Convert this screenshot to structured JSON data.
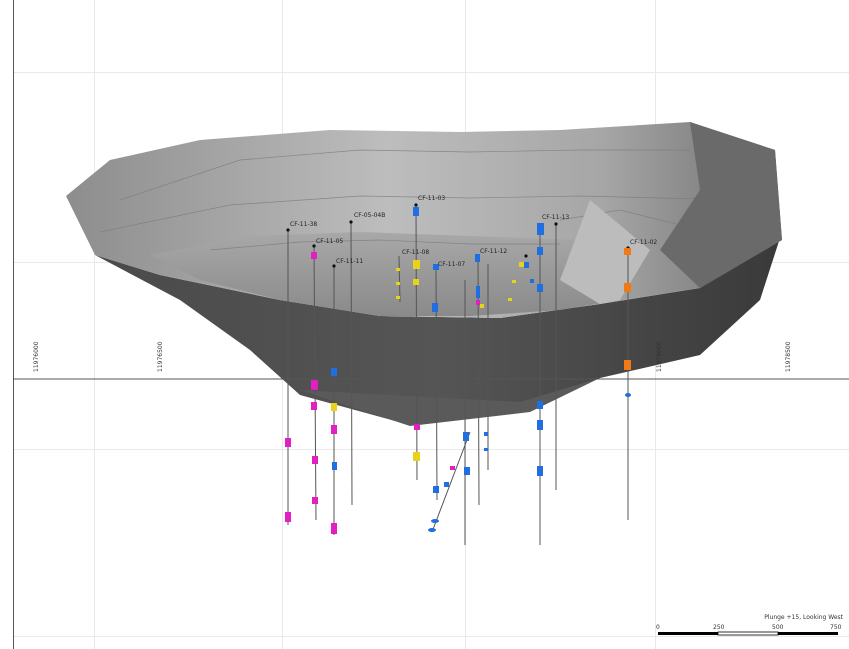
{
  "view": {
    "caption": "Plunge +15, Looking West",
    "northings": [
      "11976000",
      "11976500",
      "11978000",
      "11978500"
    ],
    "scale_ticks": [
      "0",
      "250",
      "500",
      "750"
    ]
  },
  "holes": [
    {
      "id": "CF-11-38"
    },
    {
      "id": "CF-05-04B"
    },
    {
      "id": "CF-11-03"
    },
    {
      "id": "CF-11-05"
    },
    {
      "id": "CF-11-11"
    },
    {
      "id": "CF-11-08"
    },
    {
      "id": "CF-11-07"
    },
    {
      "id": "CF-11-12"
    },
    {
      "id": "CF-11-13"
    },
    {
      "id": "CF-11-02"
    }
  ],
  "colors": {
    "magenta": "#e020c0",
    "blue": "#1f6fe0",
    "yellow": "#e8d21a",
    "orange": "#f07a16",
    "pit_dark": "#3f3f3f",
    "pit_light": "#9a9a9a"
  }
}
